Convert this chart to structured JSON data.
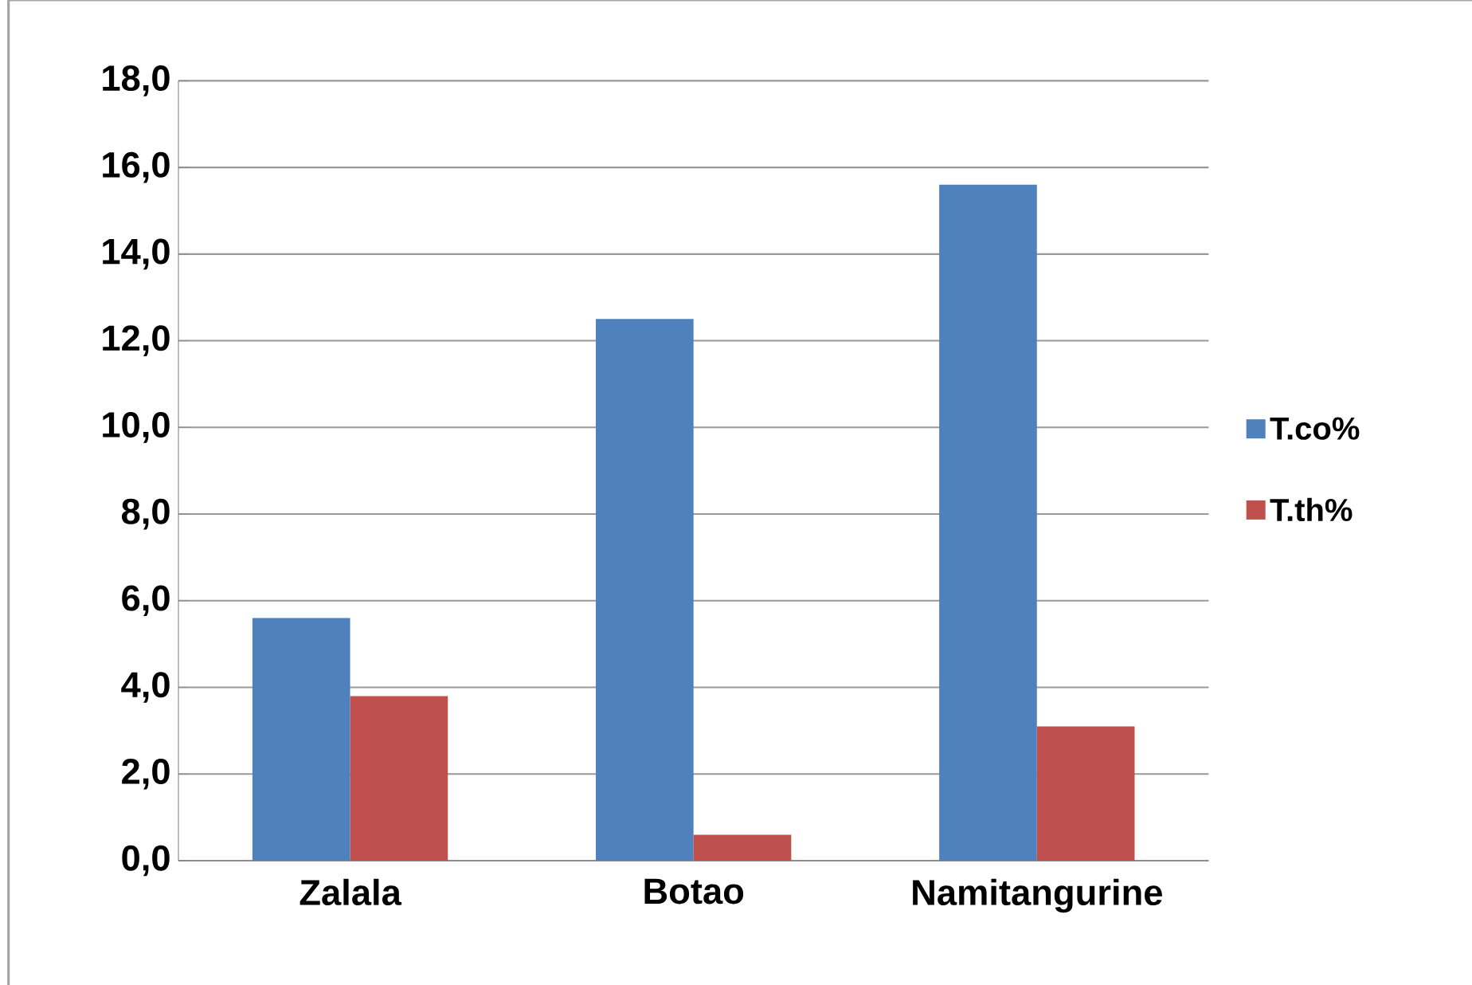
{
  "chart_data": {
    "type": "bar",
    "categories": [
      "Zalala",
      "Botao",
      "Namitangurine"
    ],
    "series": [
      {
        "name": "T.co%",
        "color": "#4f81bd",
        "values": [
          5.6,
          12.5,
          15.6
        ]
      },
      {
        "name": "T.th%",
        "color": "#c0504d",
        "values": [
          3.8,
          0.6,
          3.1
        ]
      }
    ],
    "ylim": [
      0,
      18
    ],
    "yticks": [
      {
        "value": 0,
        "label": "0,0"
      },
      {
        "value": 2,
        "label": "2,0"
      },
      {
        "value": 4,
        "label": "4,0"
      },
      {
        "value": 6,
        "label": "6,0"
      },
      {
        "value": 8,
        "label": "8,0"
      },
      {
        "value": 10,
        "label": "10,0"
      },
      {
        "value": 12,
        "label": "12,0"
      },
      {
        "value": 14,
        "label": "14,0"
      },
      {
        "value": 16,
        "label": "16,0"
      },
      {
        "value": 18,
        "label": "18,0"
      }
    ],
    "grid": "y",
    "legend": "right"
  }
}
